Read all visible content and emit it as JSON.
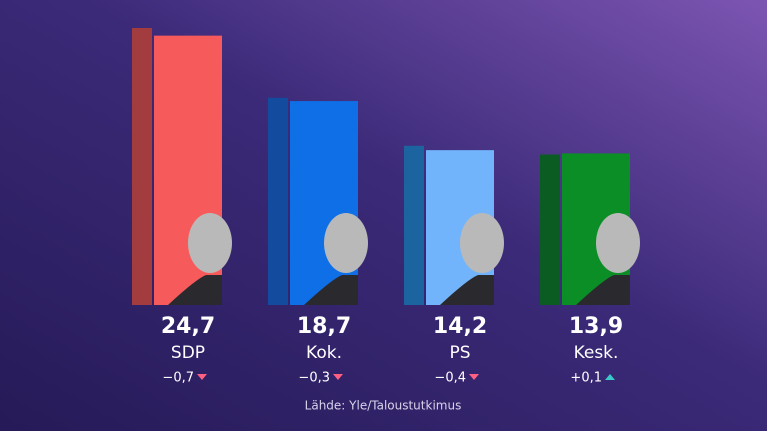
{
  "chart_data": {
    "type": "bar",
    "categories": [
      "SDP",
      "Kok.",
      "PS",
      "Kesk."
    ],
    "values": [
      24.7,
      18.7,
      14.2,
      13.9
    ],
    "value_labels": [
      "24,7",
      "18,7",
      "14,2",
      "13,9"
    ],
    "colors": [
      "#f65a5a",
      "#0f6fe6",
      "#72b4fb",
      "#0b8e25"
    ],
    "previous_values": [
      25.4,
      19.0,
      14.6,
      13.8
    ],
    "previous_colors": [
      "#a33c3e",
      "#134b9f",
      "#1b649f",
      "#0b5c22"
    ],
    "changes": [
      {
        "value": -0.7,
        "label": "−0,7"
      },
      {
        "value": -0.3,
        "label": "−0,3"
      },
      {
        "value": -0.4,
        "label": "−0,4"
      },
      {
        "value": 0.1,
        "label": "+0,1"
      }
    ],
    "source": "Lähde: Yle/Taloustutkimus"
  }
}
